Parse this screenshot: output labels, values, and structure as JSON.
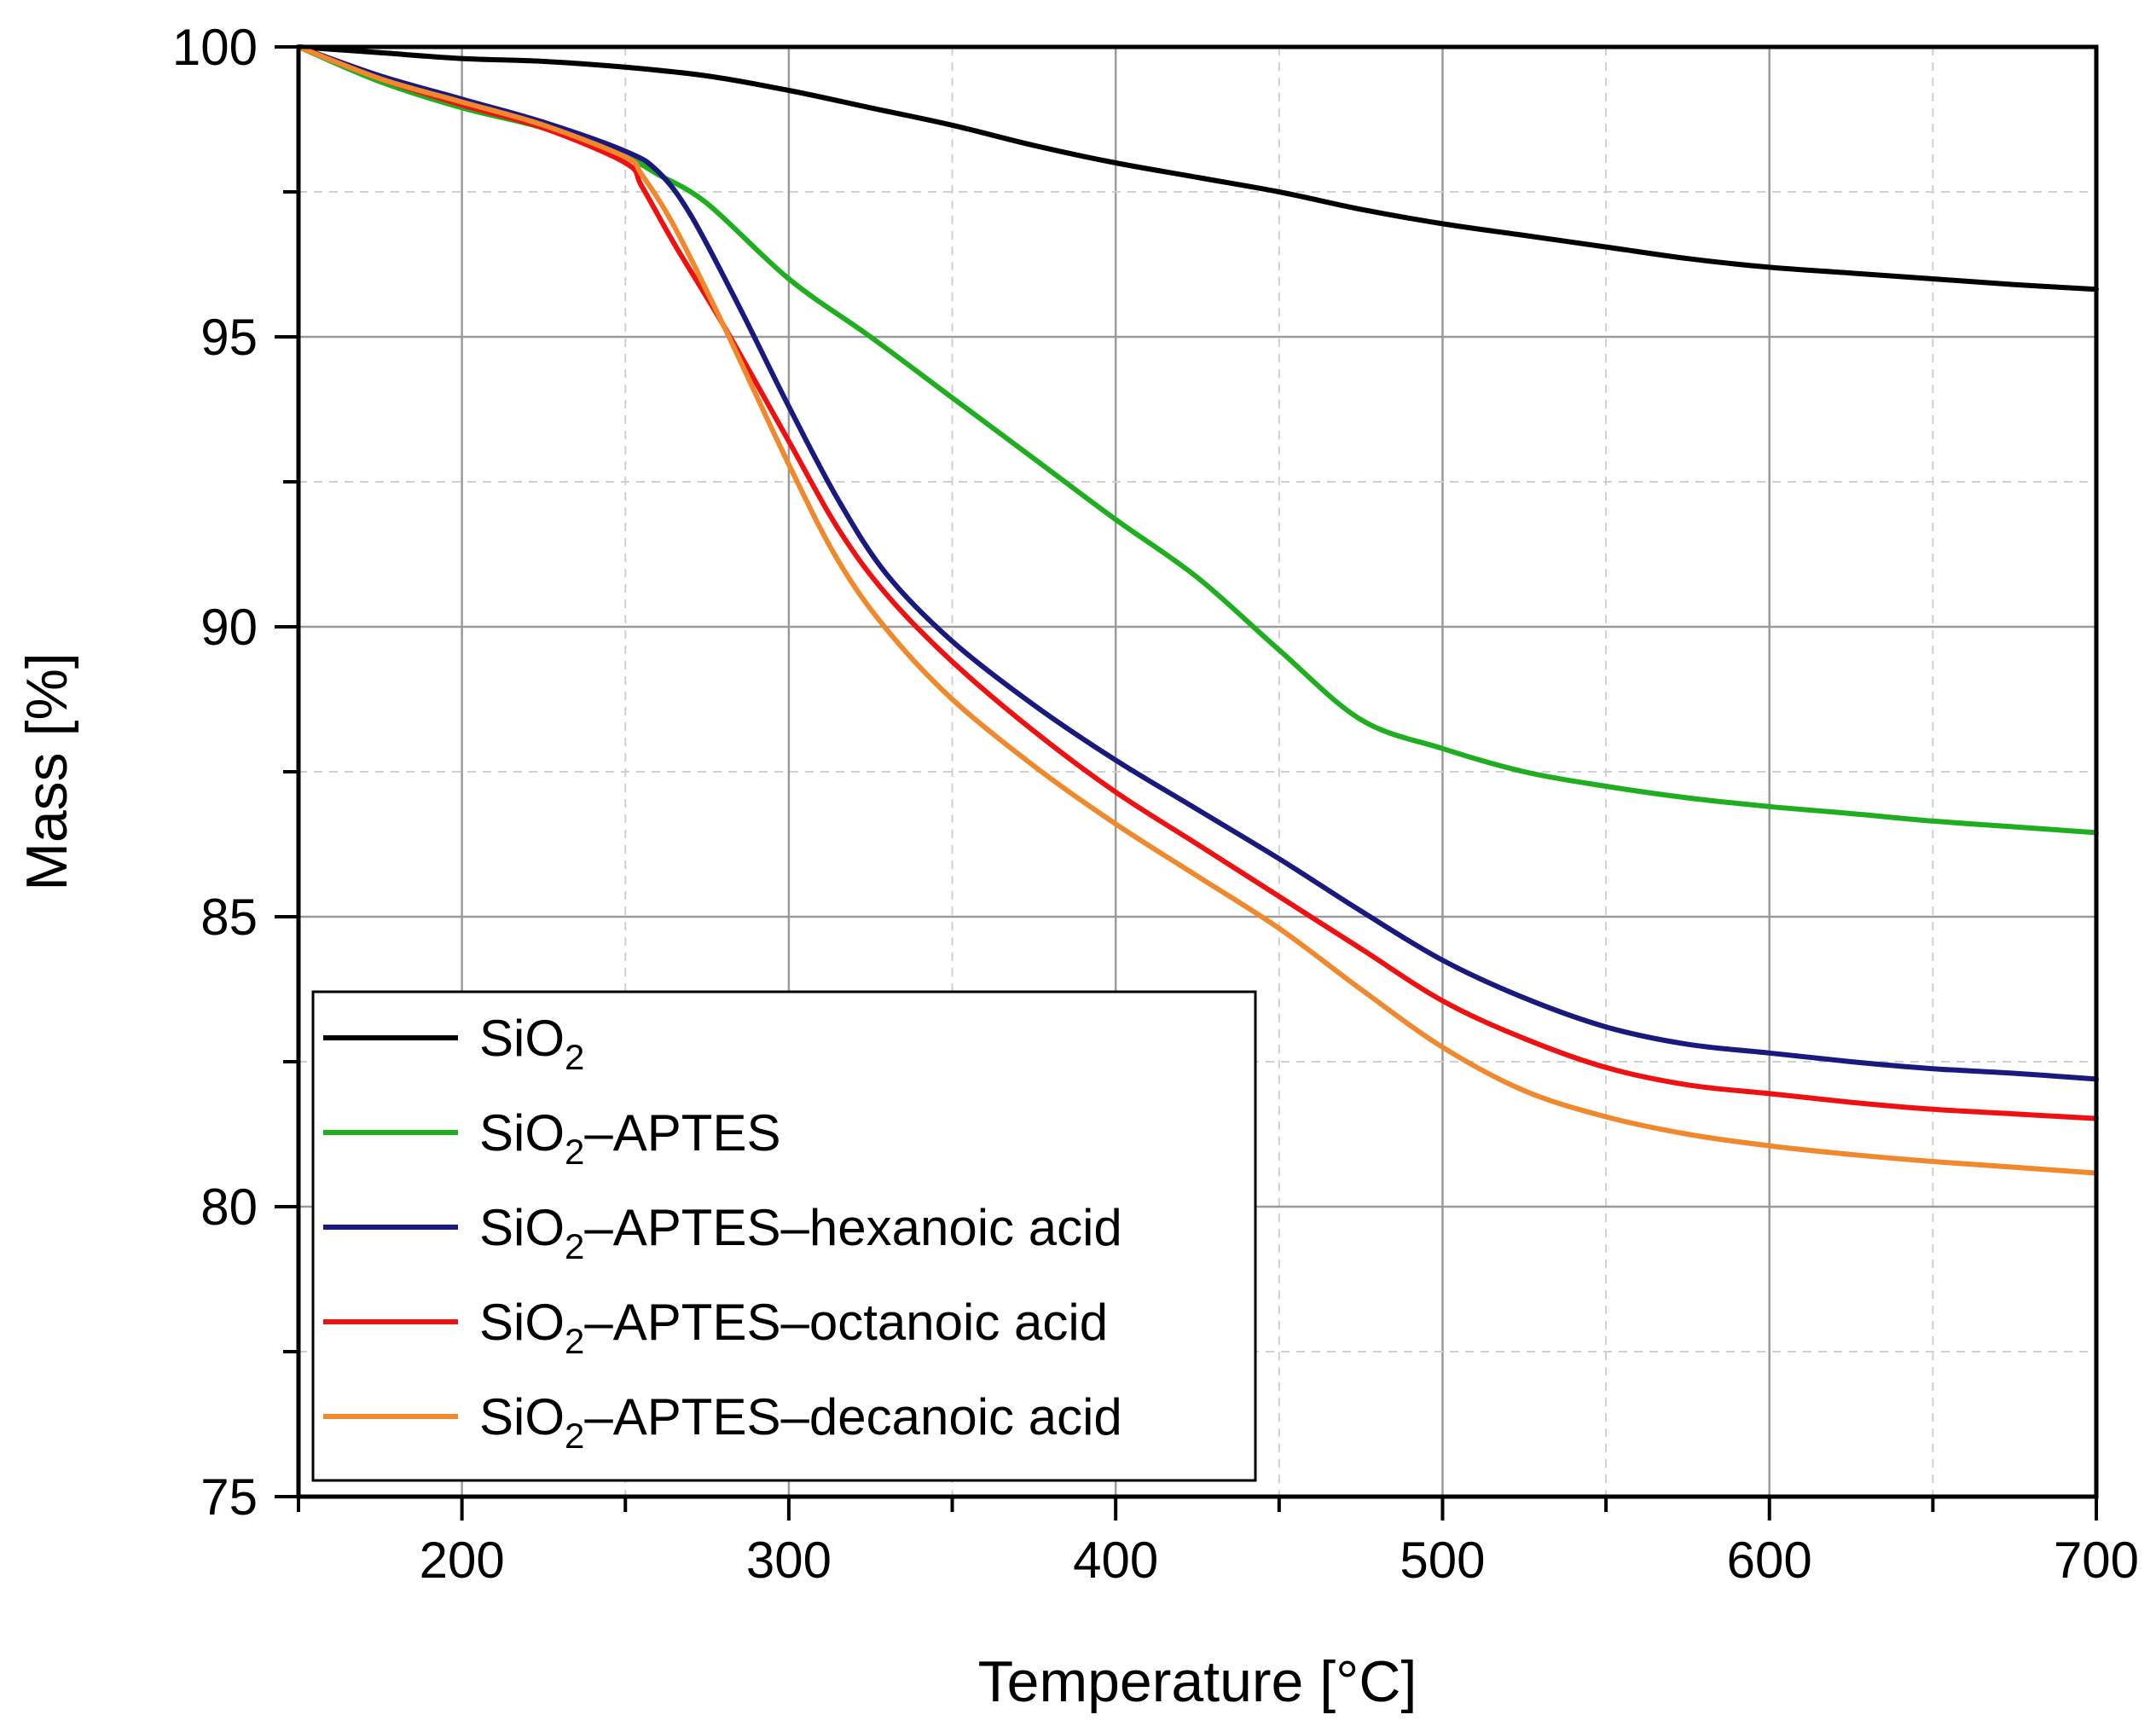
{
  "chart_data": {
    "type": "line",
    "title": "",
    "xlabel": "Temperature [°C]",
    "ylabel": "Mass [%]",
    "xlim": [
      150,
      700
    ],
    "ylim": [
      75,
      100
    ],
    "xticks": [
      200,
      300,
      400,
      500,
      600,
      700
    ],
    "yticks": [
      75,
      80,
      85,
      90,
      95,
      100
    ],
    "grid": true,
    "legend_position": "bottom-left",
    "series": [
      {
        "name": "SiO2",
        "label_parts": [
          "SiO",
          "2",
          ""
        ],
        "color": "#000000",
        "x": [
          150,
          175,
          200,
          225,
          250,
          275,
          300,
          325,
          350,
          375,
          400,
          425,
          450,
          475,
          500,
          525,
          550,
          575,
          600,
          625,
          650,
          675,
          700
        ],
        "y": [
          100,
          99.9,
          99.8,
          99.75,
          99.65,
          99.5,
          99.25,
          98.95,
          98.65,
          98.3,
          98.0,
          97.75,
          97.5,
          97.2,
          96.95,
          96.75,
          96.55,
          96.35,
          96.2,
          96.1,
          96.0,
          95.9,
          95.82
        ]
      },
      {
        "name": "SiO2–APTES",
        "label_parts": [
          "SiO",
          "2",
          "–APTES"
        ],
        "color": "#1fae1f",
        "x": [
          150,
          175,
          200,
          225,
          250,
          260,
          275,
          300,
          325,
          350,
          375,
          400,
          425,
          450,
          475,
          500,
          525,
          550,
          575,
          600,
          625,
          650,
          675,
          700
        ],
        "y": [
          100,
          99.4,
          98.95,
          98.6,
          98.1,
          97.8,
          97.3,
          96.0,
          95.0,
          93.95,
          92.9,
          91.85,
          90.85,
          89.6,
          88.4,
          87.9,
          87.5,
          87.25,
          87.05,
          86.9,
          86.78,
          86.65,
          86.55,
          86.45
        ]
      },
      {
        "name": "SiO2–APTES–hexanoic acid",
        "label_parts": [
          "SiO",
          "2",
          "–APTES–hexanoic acid"
        ],
        "color": "#1a1a7e",
        "x": [
          150,
          175,
          200,
          225,
          250,
          260,
          270,
          285,
          300,
          315,
          330,
          350,
          375,
          400,
          425,
          450,
          475,
          500,
          525,
          550,
          575,
          600,
          625,
          650,
          675,
          700
        ],
        "y": [
          100,
          99.5,
          99.1,
          98.7,
          98.2,
          97.85,
          97.1,
          95.5,
          93.8,
          92.2,
          90.9,
          89.75,
          88.65,
          87.7,
          86.85,
          86.0,
          85.1,
          84.25,
          83.6,
          83.1,
          82.8,
          82.65,
          82.5,
          82.38,
          82.3,
          82.2
        ]
      },
      {
        "name": "SiO2–APTES–octanoic acid",
        "label_parts": [
          "SiO",
          "2",
          "–APTES–octanoic acid"
        ],
        "color": "#ee1111",
        "x": [
          150,
          175,
          200,
          225,
          250,
          255,
          265,
          280,
          300,
          315,
          330,
          350,
          375,
          400,
          425,
          450,
          475,
          500,
          525,
          550,
          575,
          600,
          625,
          650,
          675,
          700
        ],
        "y": [
          100,
          99.45,
          99.0,
          98.6,
          98.0,
          97.6,
          96.6,
          95.2,
          93.2,
          91.7,
          90.55,
          89.4,
          88.2,
          87.15,
          86.25,
          85.35,
          84.45,
          83.55,
          82.9,
          82.4,
          82.1,
          81.95,
          81.8,
          81.68,
          81.6,
          81.52
        ]
      },
      {
        "name": "SiO2–APTES–decanoic acid",
        "label_parts": [
          "SiO",
          "2",
          "–APTES–decanoic acid"
        ],
        "color": "#f0892e",
        "x": [
          150,
          175,
          200,
          225,
          250,
          255,
          265,
          280,
          300,
          315,
          330,
          350,
          375,
          400,
          425,
          450,
          475,
          500,
          525,
          550,
          575,
          600,
          625,
          650,
          675,
          700
        ],
        "y": [
          100,
          99.45,
          99.05,
          98.65,
          98.1,
          97.8,
          96.9,
          95.2,
          92.8,
          91.15,
          89.95,
          88.75,
          87.6,
          86.6,
          85.7,
          84.8,
          83.75,
          82.75,
          82.0,
          81.55,
          81.25,
          81.05,
          80.9,
          80.78,
          80.68,
          80.58
        ]
      }
    ]
  }
}
